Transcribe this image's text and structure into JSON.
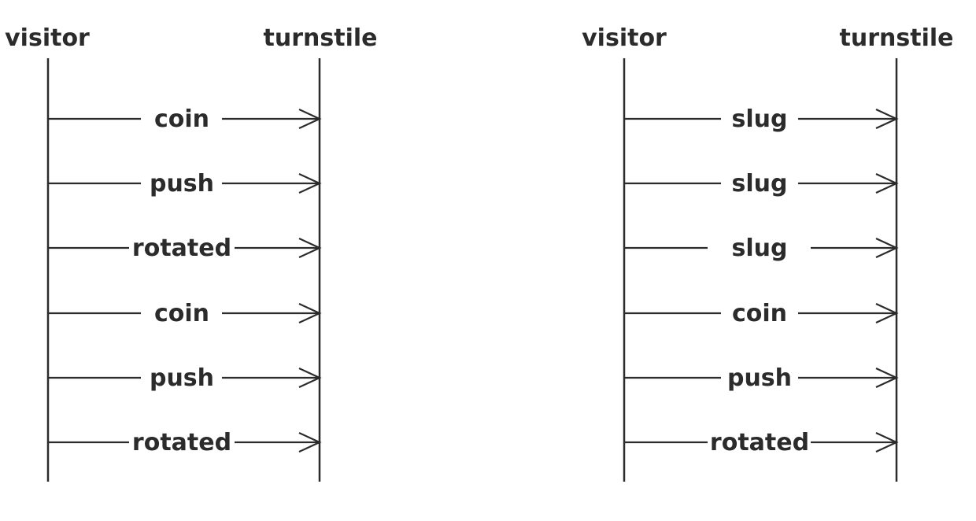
{
  "diagrams": [
    {
      "participants": [
        "visitor",
        "turnstile"
      ],
      "messages": [
        "coin",
        "push",
        "rotated",
        "coin",
        "push",
        "rotated"
      ]
    },
    {
      "participants": [
        "visitor",
        "turnstile"
      ],
      "messages": [
        "slug",
        "slug",
        "slug",
        "coin",
        "push",
        "rotated"
      ]
    }
  ]
}
